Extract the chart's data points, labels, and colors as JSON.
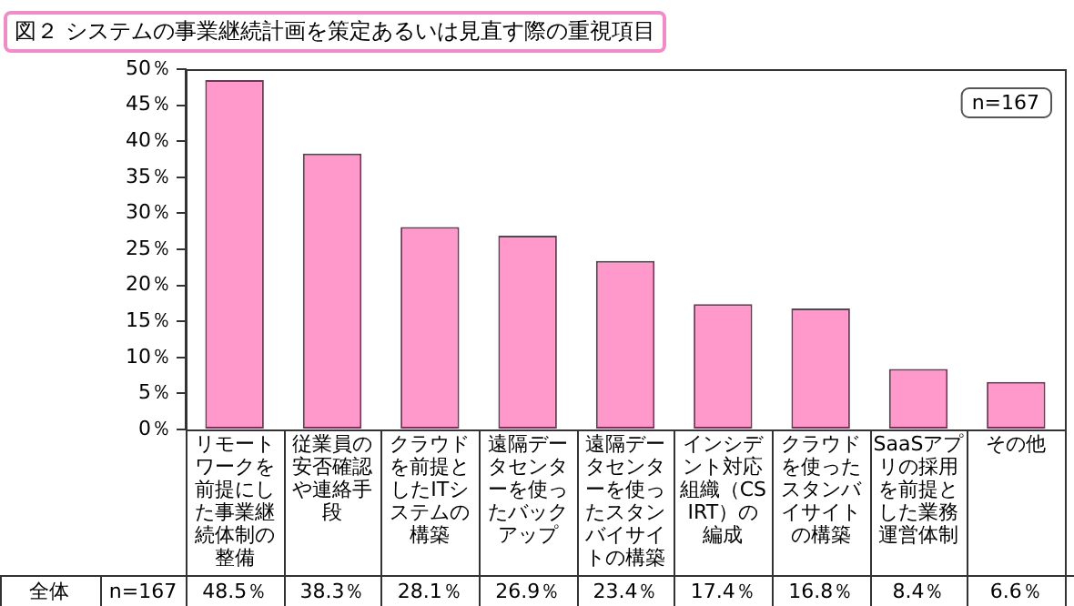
{
  "chart_data": {
    "type": "bar",
    "title": "図２ システムの事業継続計画を策定あるいは見直す際の重視項目",
    "categories": [
      "リモートワークを前提にした事業継続体制の整備",
      "従業員の安否確認や連絡手段",
      "クラウドを前提としたITシステムの構築",
      "遠隔データセンターを使ったバックアップ",
      "遠隔データセンターを使ったスタンバイサイトの構築",
      "インシデント対応組織（CSIRT）の編成",
      "クラウドを使ったスタンバイサイトの構築",
      "SaaSアプリの採用を前提とした業務運営体制",
      "その他"
    ],
    "values": [
      48.5,
      38.3,
      28.1,
      26.9,
      23.4,
      17.4,
      16.8,
      8.4,
      6.6
    ],
    "value_labels": [
      "48.5％",
      "38.3％",
      "28.1％",
      "26.9％",
      "23.4％",
      "17.4％",
      "16.8％",
      "8.4％",
      "6.6％"
    ],
    "color": "#ff99cc",
    "ylim": [
      0,
      50
    ],
    "yticks": [
      {
        "value": 0,
        "label": "0％"
      },
      {
        "value": 5,
        "label": "5％"
      },
      {
        "value": 10,
        "label": "10％"
      },
      {
        "value": 15,
        "label": "15％"
      },
      {
        "value": 20,
        "label": "20％"
      },
      {
        "value": 25,
        "label": "25％"
      },
      {
        "value": 30,
        "label": "30％"
      },
      {
        "value": 35,
        "label": "35％"
      },
      {
        "value": 40,
        "label": "40％"
      },
      {
        "value": 45,
        "label": "45％"
      },
      {
        "value": 50,
        "label": "50％"
      }
    ],
    "annotations": [
      "n=167",
      "全体",
      "n=167"
    ],
    "grid": false,
    "legend": false
  }
}
